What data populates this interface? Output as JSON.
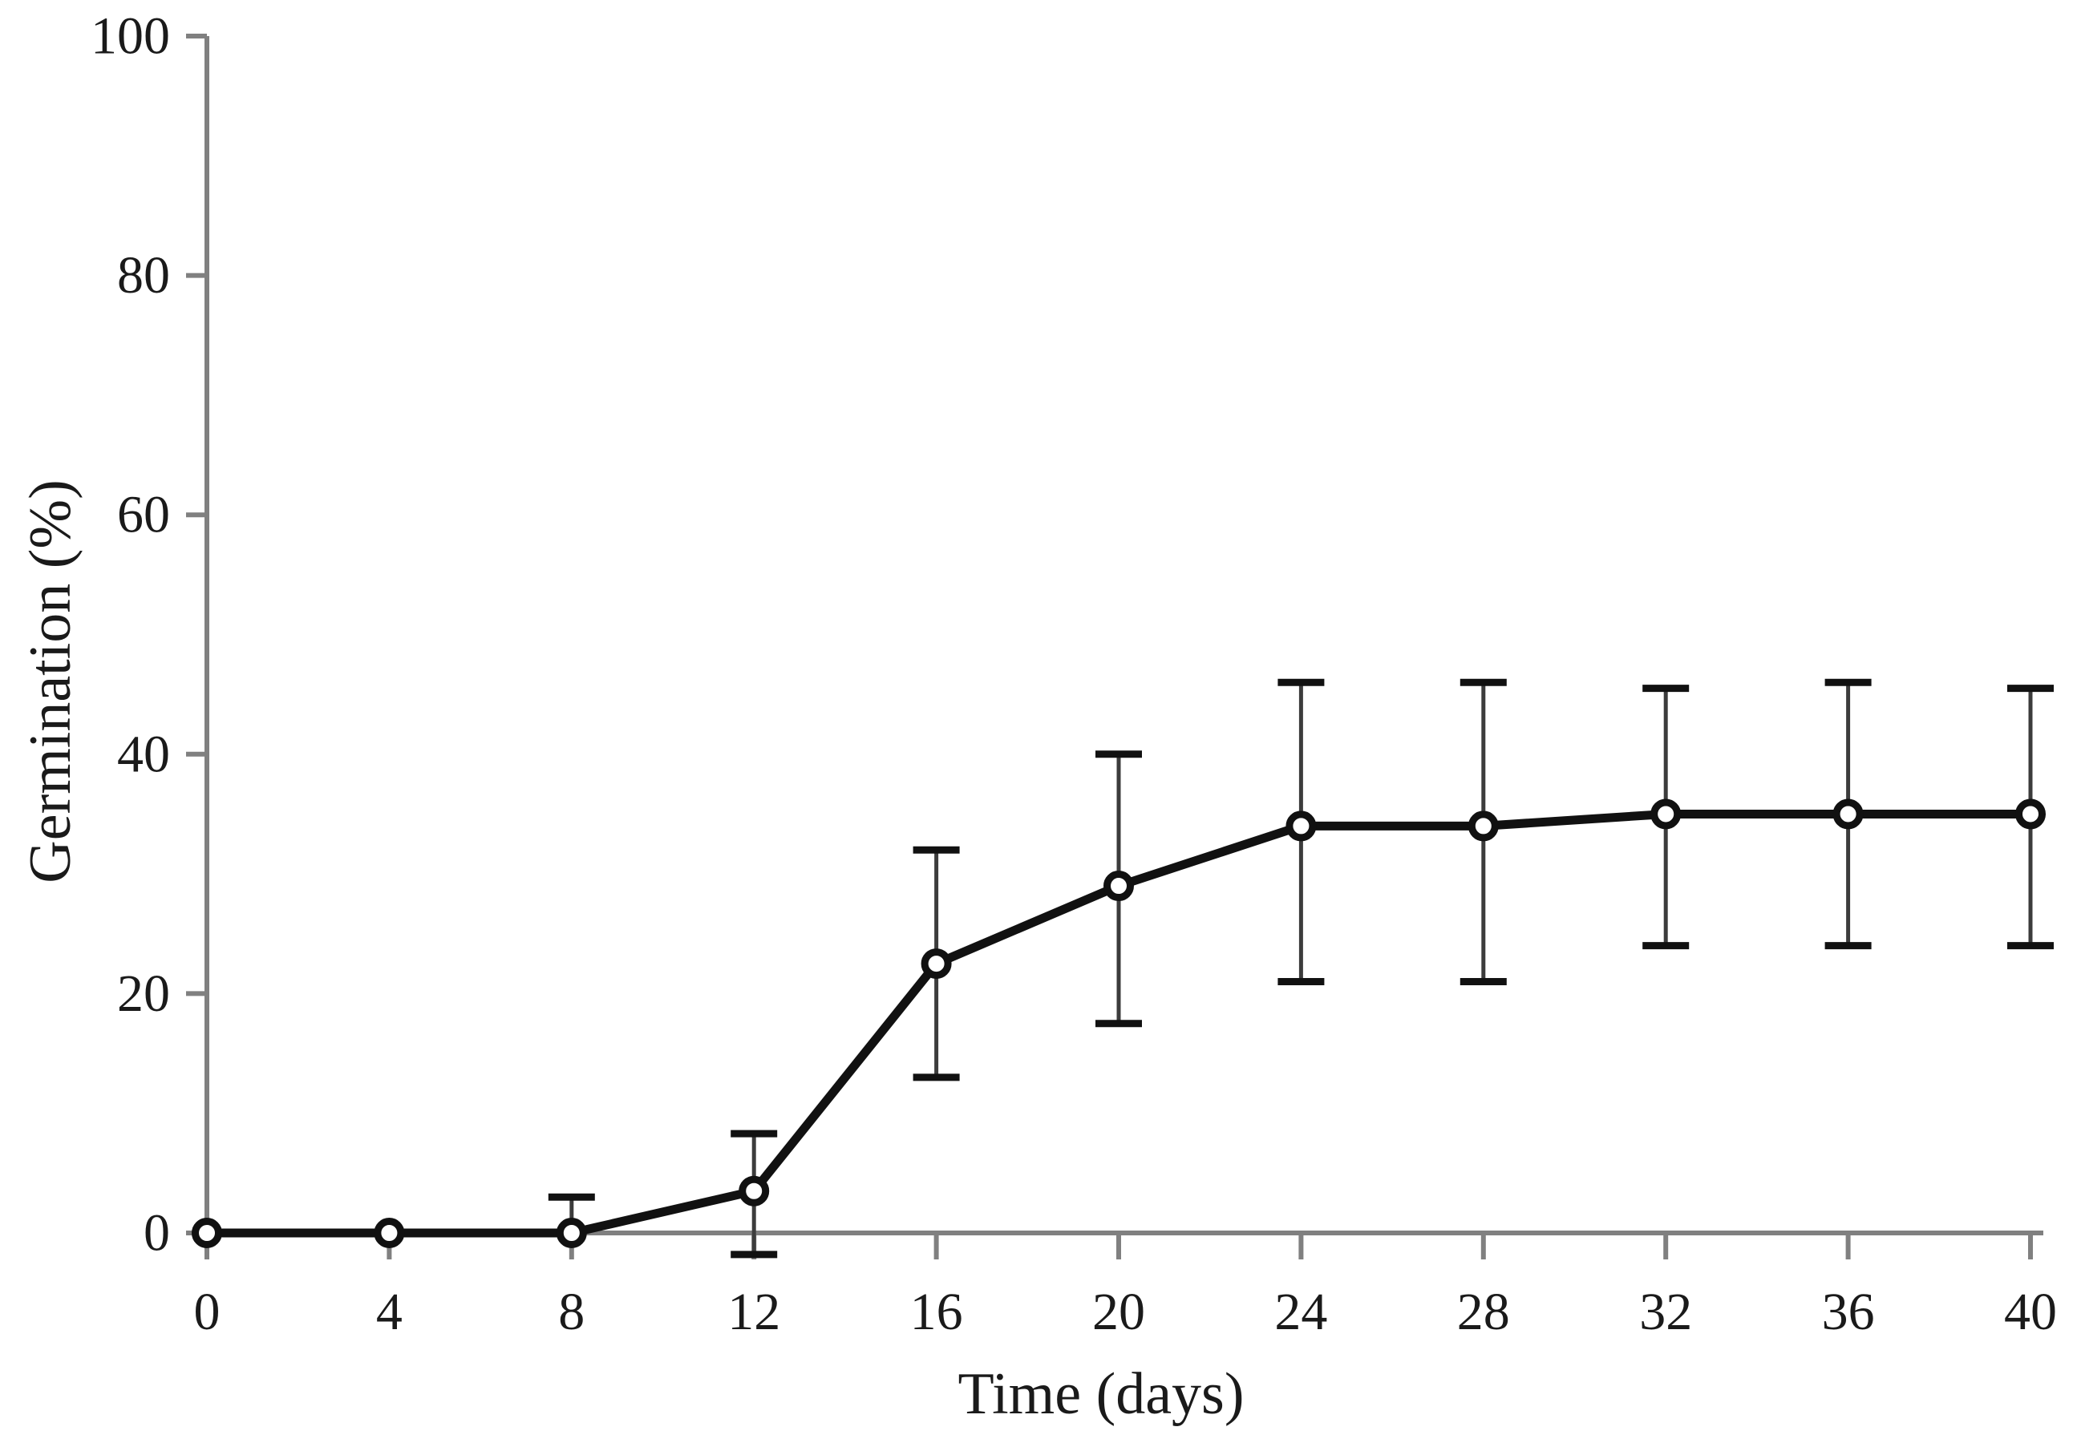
{
  "figure": {
    "background": "#ffffff"
  },
  "chart_data": {
    "type": "line",
    "title": "",
    "xlabel": "Time (days)",
    "ylabel": "Germination (%)",
    "xlim": [
      0,
      40
    ],
    "ylim": [
      0,
      100
    ],
    "xticks": [
      0,
      4,
      8,
      12,
      16,
      20,
      24,
      28,
      32,
      36,
      40
    ],
    "yticks": [
      0,
      20,
      40,
      60,
      80,
      100
    ],
    "grid": false,
    "legend": false,
    "x": [
      0,
      4,
      8,
      12,
      16,
      20,
      24,
      28,
      32,
      36,
      40
    ],
    "series": [
      {
        "name": "Germination",
        "marker": "open-circle",
        "values": [
          0,
          0,
          0,
          3.5,
          22.5,
          29,
          34,
          34,
          35,
          35,
          35
        ],
        "error_up": [
          0,
          0,
          3,
          4.8,
          9.5,
          11,
          12,
          12,
          10.5,
          11,
          10.5
        ],
        "error_down": [
          0,
          0,
          0,
          5.3,
          9.5,
          11.5,
          13,
          13,
          11,
          11,
          11
        ]
      }
    ],
    "colors": {
      "line": "#111111",
      "marker_fill": "#ffffff",
      "marker_stroke": "#111111",
      "error_bar": "#3c3c3c",
      "error_cap": "#111111",
      "axis": "#808080",
      "text": "#1a1a1a"
    }
  }
}
